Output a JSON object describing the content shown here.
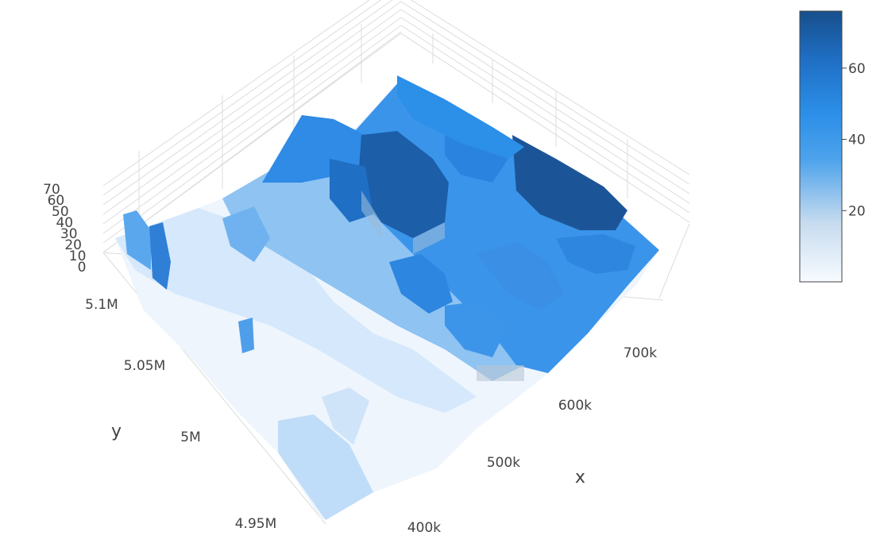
{
  "chart_data": {
    "type": "surface",
    "colorscale": [
      "#f7fbff",
      "#c6dbef",
      "#6baed6",
      "#2c8fe8",
      "#1f78d1",
      "#174f8c"
    ],
    "x_axis": {
      "label": "x",
      "ticks": [
        "400k",
        "500k",
        "600k",
        "700k"
      ],
      "range": [
        380000,
        780000
      ]
    },
    "y_axis": {
      "label": "y",
      "ticks": [
        "4.95M",
        "5M",
        "5.05M",
        "5.1M"
      ],
      "range": [
        4930000,
        5130000
      ]
    },
    "z_axis": {
      "label": "",
      "ticks": [
        "0",
        "10",
        "20",
        "30",
        "40",
        "50",
        "60",
        "70"
      ],
      "range": [
        0,
        76
      ]
    },
    "colorbar": {
      "ticks": [
        "20",
        "40",
        "60"
      ],
      "range": [
        0,
        76
      ]
    },
    "grid": true
  }
}
